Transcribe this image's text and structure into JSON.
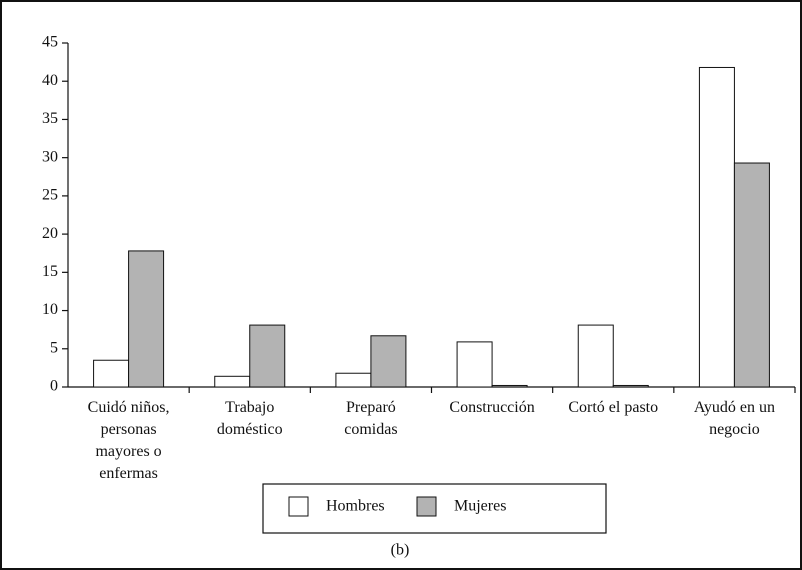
{
  "chart_data": {
    "type": "bar",
    "categories": [
      "Cuidó niños, personas mayores o enfermas",
      "Trabajo doméstico",
      "Preparó comidas",
      "Construcción",
      "Cortó el pasto",
      "Ayudó en un negocio"
    ],
    "series": [
      {
        "name": "Hombres",
        "color": "#ffffff",
        "values": [
          3.5,
          1.4,
          1.8,
          5.9,
          8.1,
          41.8
        ]
      },
      {
        "name": "Mujeres",
        "color": "#b3b3b3",
        "values": [
          17.8,
          8.1,
          6.7,
          0.2,
          0.2,
          29.3
        ]
      }
    ],
    "ylim": [
      0,
      45
    ],
    "yticks": [
      0,
      5,
      10,
      15,
      20,
      25,
      30,
      35,
      40,
      45
    ],
    "caption": "(b)"
  }
}
